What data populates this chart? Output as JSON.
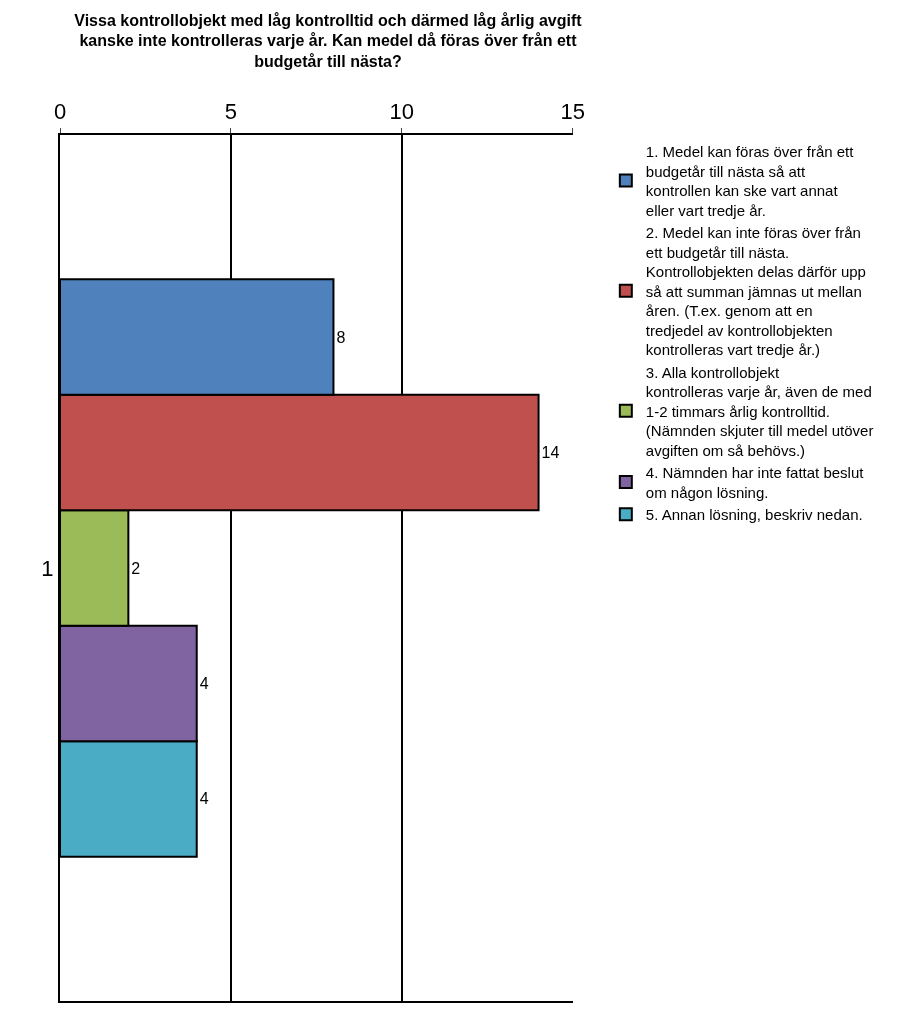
{
  "chart_data": {
    "type": "bar",
    "orientation": "horizontal",
    "title": "Vissa kontrollobjekt med låg kontrolltid och därmed låg årlig avgift kanske inte kontrolleras varje år. Kan medel då föras över från ett budgetår till nästa?",
    "categories": [
      "1"
    ],
    "series": [
      {
        "name": "1. Medel kan föras över från ett budgetår till nästa så att kontrollen kan ske vart annat eller vart tredje år.",
        "color": "#4f81bd",
        "values": [
          8
        ]
      },
      {
        "name": "2. Medel kan inte föras över från ett budgetår till nästa. Kontrollobjekten delas därför upp så att summan jämnas ut mellan åren. (T.ex. genom att en tredjedel av kontrollobjekten kontrolleras vart tredje år.)",
        "color": "#c0504d",
        "values": [
          14
        ]
      },
      {
        "name": "3. Alla kontrollobjekt kontrolleras varje år, även de med 1-2 timmars årlig kontrolltid. (Nämnden skjuter till medel utöver avgiften om så behövs.)",
        "color": "#9bbb59",
        "values": [
          2
        ]
      },
      {
        "name": "4. Nämnden har inte fattat beslut om någon lösning.",
        "color": "#8064a2",
        "values": [
          4
        ]
      },
      {
        "name": "5. Annan lösning, beskriv nedan.",
        "color": "#4bacc6",
        "values": [
          4
        ]
      }
    ],
    "xlim": [
      0,
      15
    ],
    "xticks": [
      0,
      5,
      10,
      15
    ],
    "grid": "x",
    "legend": "right",
    "data_labels": true
  }
}
